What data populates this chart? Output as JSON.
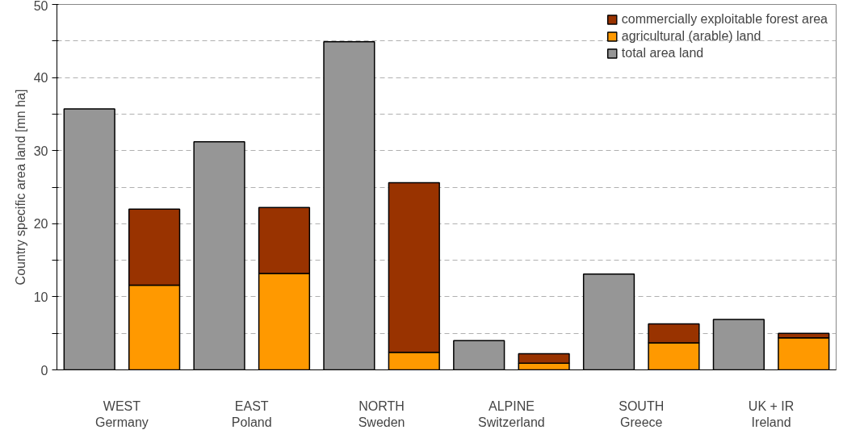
{
  "chart_data": {
    "type": "bar",
    "ylabel": "Country specific area land [mn ha]",
    "categories": [
      "WEST\nGermany",
      null,
      "EAST\nPoland",
      null,
      "NORTH\nSweden",
      null,
      "ALPINE\nSwitzerland",
      null,
      "SOUTH\nGreece",
      null,
      "UK + IR\nIreland",
      null
    ],
    "stacked": true,
    "series": [
      {
        "name": "total area land",
        "color": "#969696",
        "values": [
          35.7,
          null,
          31.2,
          null,
          44.9,
          null,
          4.0,
          null,
          13.1,
          null,
          6.9,
          null
        ]
      },
      {
        "name": "agricultural (arable) land",
        "color": "#ff9900",
        "values": [
          null,
          11.6,
          null,
          13.2,
          null,
          2.4,
          null,
          0.9,
          null,
          3.7,
          null,
          4.4
        ]
      },
      {
        "name": "commercially exploitable forest area",
        "color": "#993300",
        "values": [
          null,
          10.4,
          null,
          9.0,
          null,
          23.2,
          null,
          1.3,
          null,
          2.6,
          null,
          0.6
        ]
      }
    ],
    "ylim": [
      0,
      50
    ],
    "yticks": [
      0,
      {
        "value": 5,
        "label": null
      },
      10,
      {
        "value": 15,
        "label": null
      },
      20,
      {
        "value": 25,
        "label": null
      },
      30,
      {
        "value": 35,
        "label": null
      },
      40,
      {
        "value": 45,
        "label": null
      },
      50
    ],
    "grid": "y",
    "legend": "top right"
  }
}
